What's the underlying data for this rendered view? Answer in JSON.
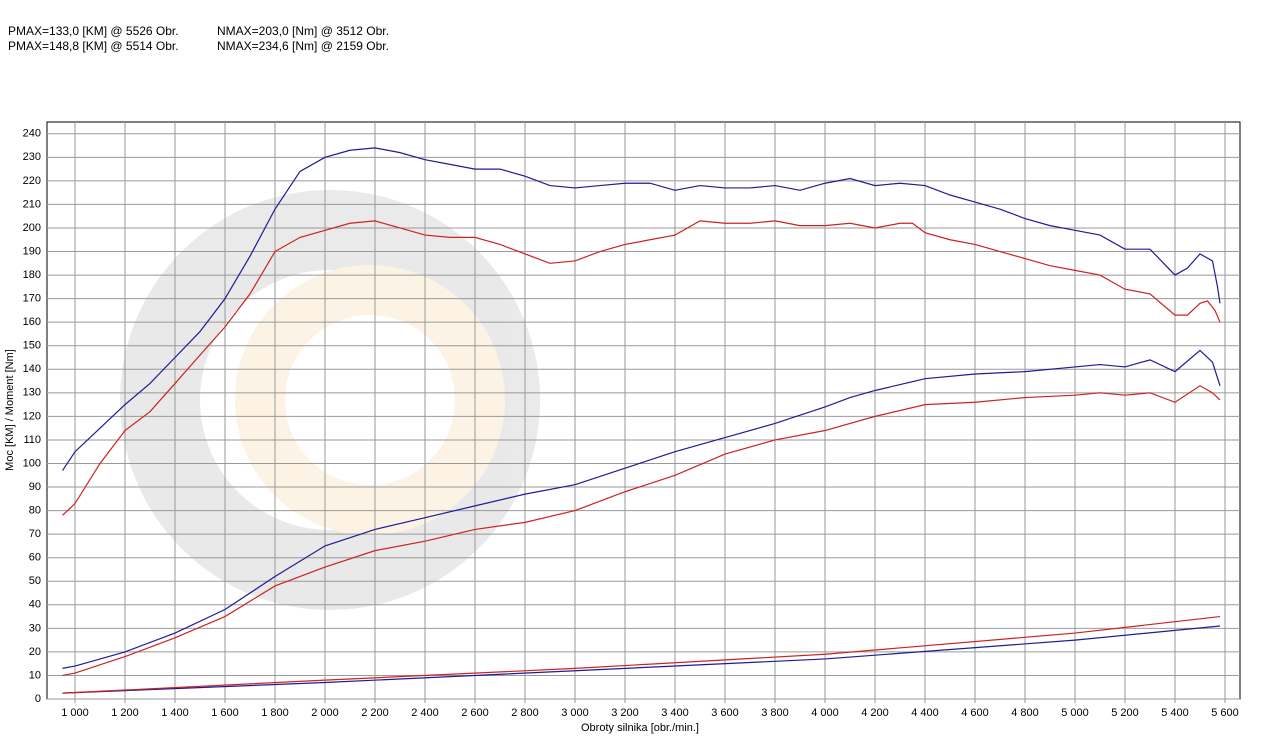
{
  "header": {
    "lines": [
      [
        "PMAX=133,0 [KM] @ 5526 Obr.",
        "NMAX=203,0 [Nm] @ 3512 Obr."
      ],
      [
        "PMAX=148,8 [KM] @ 5514 Obr.",
        "NMAX=234,6 [Nm] @ 2159 Obr."
      ]
    ]
  },
  "chart_data": {
    "type": "line",
    "xlabel": "Obroty silnika [obr./min.]",
    "ylabel": "Moc [KM] / Moment [Nm]",
    "xlim": [
      888,
      5660
    ],
    "ylim": [
      0,
      245
    ],
    "grid": true,
    "xticks": [
      {
        "value": 1000,
        "label": "1 000"
      },
      {
        "value": 1200,
        "label": "1 200"
      },
      {
        "value": 1400,
        "label": "1 400"
      },
      {
        "value": 1600,
        "label": "1 600"
      },
      {
        "value": 1800,
        "label": "1 800"
      },
      {
        "value": 2000,
        "label": "2 000"
      },
      {
        "value": 2200,
        "label": "2 200"
      },
      {
        "value": 2400,
        "label": "2 400"
      },
      {
        "value": 2600,
        "label": "2 600"
      },
      {
        "value": 2800,
        "label": "2 800"
      },
      {
        "value": 3000,
        "label": "3 000"
      },
      {
        "value": 3200,
        "label": "3 200"
      },
      {
        "value": 3400,
        "label": "3 400"
      },
      {
        "value": 3600,
        "label": "3 600"
      },
      {
        "value": 3800,
        "label": "3 800"
      },
      {
        "value": 4000,
        "label": "4 000"
      },
      {
        "value": 4200,
        "label": "4 200"
      },
      {
        "value": 4400,
        "label": "4 400"
      },
      {
        "value": 4600,
        "label": "4 600"
      },
      {
        "value": 4800,
        "label": "4 800"
      },
      {
        "value": 5000,
        "label": "5 000"
      },
      {
        "value": 5200,
        "label": "5 200"
      },
      {
        "value": 5400,
        "label": "5 400"
      },
      {
        "value": 5600,
        "label": "5 600"
      }
    ],
    "yticks": [
      0,
      10,
      20,
      30,
      40,
      50,
      60,
      70,
      80,
      90,
      100,
      110,
      120,
      130,
      140,
      150,
      160,
      170,
      180,
      190,
      200,
      210,
      220,
      230,
      240
    ],
    "series": [
      {
        "color": "#1c1c96",
        "x": [
          950,
          1000,
          1100,
          1200,
          1300,
          1400,
          1500,
          1600,
          1700,
          1800,
          1900,
          2000,
          2100,
          2200,
          2300,
          2400,
          2500,
          2600,
          2700,
          2800,
          2900,
          3000,
          3100,
          3200,
          3300,
          3400,
          3500,
          3600,
          3700,
          3800,
          3900,
          4000,
          4100,
          4200,
          4300,
          4400,
          4500,
          4600,
          4700,
          4800,
          4900,
          5000,
          5100,
          5200,
          5300,
          5400,
          5450,
          5500,
          5550,
          5570,
          5580
        ],
        "values": [
          97,
          105,
          115,
          125,
          134,
          145,
          156,
          170,
          188,
          208,
          224,
          230,
          233,
          234,
          232,
          229,
          227,
          225,
          225,
          222,
          218,
          217,
          218,
          219,
          219,
          216,
          218,
          217,
          217,
          218,
          216,
          219,
          221,
          218,
          219,
          218,
          214,
          211,
          208,
          204,
          201,
          199,
          197,
          191,
          191,
          180,
          183,
          189,
          186,
          175,
          168
        ]
      },
      {
        "color": "#cc2222",
        "x": [
          950,
          1000,
          1100,
          1200,
          1300,
          1400,
          1500,
          1600,
          1700,
          1800,
          1900,
          2000,
          2100,
          2200,
          2300,
          2400,
          2500,
          2600,
          2700,
          2800,
          2900,
          3000,
          3100,
          3200,
          3300,
          3400,
          3500,
          3600,
          3700,
          3800,
          3900,
          4000,
          4100,
          4200,
          4300,
          4350,
          4400,
          4500,
          4600,
          4700,
          4800,
          4900,
          5000,
          5100,
          5200,
          5300,
          5400,
          5450,
          5500,
          5530,
          5560,
          5580
        ],
        "values": [
          78,
          83,
          100,
          114,
          122,
          134,
          146,
          158,
          172,
          190,
          196,
          199,
          202,
          203,
          200,
          197,
          196,
          196,
          193,
          189,
          185,
          186,
          190,
          193,
          195,
          197,
          203,
          202,
          202,
          203,
          201,
          201,
          202,
          200,
          202,
          202,
          198,
          195,
          193,
          190,
          187,
          184,
          182,
          180,
          174,
          172,
          163,
          163,
          168,
          169,
          165,
          160
        ]
      },
      {
        "color": "#1c1c96",
        "x": [
          950,
          1000,
          1200,
          1400,
          1600,
          1800,
          2000,
          2200,
          2400,
          2600,
          2800,
          3000,
          3200,
          3400,
          3600,
          3800,
          4000,
          4100,
          4200,
          4400,
          4600,
          4800,
          5000,
          5100,
          5200,
          5300,
          5400,
          5500,
          5550,
          5580
        ],
        "values": [
          13,
          14,
          20,
          28,
          38,
          52,
          65,
          72,
          77,
          82,
          87,
          91,
          98,
          105,
          111,
          117,
          124,
          128,
          131,
          136,
          138,
          139,
          141,
          142,
          141,
          144,
          139,
          148,
          143,
          133
        ]
      },
      {
        "color": "#cc2222",
        "x": [
          950,
          1000,
          1200,
          1400,
          1600,
          1800,
          2000,
          2200,
          2400,
          2600,
          2800,
          3000,
          3200,
          3400,
          3600,
          3800,
          4000,
          4200,
          4400,
          4600,
          4800,
          5000,
          5100,
          5200,
          5300,
          5400,
          5500,
          5550,
          5580
        ],
        "values": [
          10,
          11,
          18,
          26,
          35,
          48,
          56,
          63,
          67,
          72,
          75,
          80,
          88,
          95,
          104,
          110,
          114,
          120,
          125,
          126,
          128,
          129,
          130,
          129,
          130,
          126,
          133,
          130,
          127
        ]
      },
      {
        "color": "#1c1c96",
        "x": [
          950,
          2000,
          3000,
          4000,
          5000,
          5580
        ],
        "values": [
          2.5,
          7,
          12,
          17,
          25,
          31
        ]
      },
      {
        "color": "#cc2222",
        "x": [
          950,
          2000,
          3000,
          4000,
          5000,
          5580
        ],
        "values": [
          2.5,
          8,
          13,
          19,
          28,
          35
        ]
      }
    ]
  }
}
